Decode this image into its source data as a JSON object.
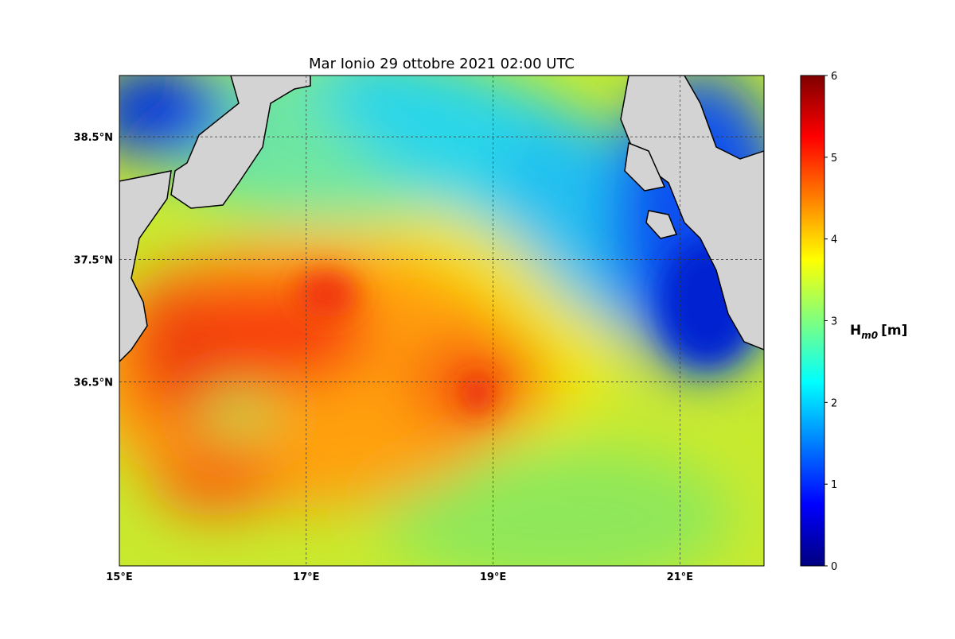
{
  "title": "Mar Ionio  29 ottobre 2021  02:00 UTC",
  "map": {
    "xlim": [
      15,
      21.9
    ],
    "ylim": [
      35,
      39
    ],
    "grid": true,
    "xticks": [
      {
        "value": 15,
        "label": "15°E"
      },
      {
        "value": 17,
        "label": "17°E"
      },
      {
        "value": 19,
        "label": "19°E"
      },
      {
        "value": 21,
        "label": "21°E"
      }
    ],
    "yticks": [
      {
        "value": 36.5,
        "label": "36.5°N"
      },
      {
        "value": 37.5,
        "label": "37.5°N"
      },
      {
        "value": 38.5,
        "label": "38.5°N"
      }
    ]
  },
  "colorbar": {
    "colormap": "jet",
    "lim": [
      0,
      6
    ],
    "ticks": [
      0,
      1,
      2,
      3,
      4,
      5,
      6
    ],
    "label": {
      "base": "H",
      "sub": "m0",
      "unit": "[m]"
    }
  }
}
